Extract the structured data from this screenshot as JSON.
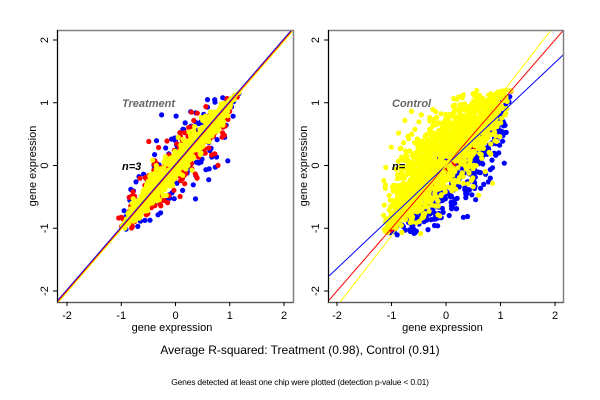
{
  "chart_data": [
    {
      "type": "scatter",
      "title": "Treatment",
      "annotation": "n=3",
      "xlabel": "gene expression",
      "ylabel": "gene expression",
      "xlim": [
        -2.2,
        2.15
      ],
      "ylim": [
        -2.15,
        2.15
      ],
      "xticks": [
        -2,
        -1,
        0,
        1,
        2
      ],
      "yticks": [
        -2,
        -1,
        0,
        1,
        2
      ],
      "grid": false,
      "series": [
        {
          "name": "blue points",
          "color": "#0000ff",
          "spread": 0.42,
          "n": 160
        },
        {
          "name": "red points",
          "color": "#ff0000",
          "spread": 0.26,
          "n": 260
        },
        {
          "name": "yellow points",
          "color": "#ffff00",
          "spread": 0.13,
          "n": 900
        }
      ],
      "point_range": [
        -1.1,
        1.2
      ],
      "fit_lines": [
        {
          "color": "#0000ff",
          "slope": 1.0,
          "intercept": 0.02
        },
        {
          "color": "#ff0000",
          "slope": 1.0,
          "intercept": 0.0
        },
        {
          "color": "#ffff00",
          "slope": 1.0,
          "intercept": -0.02
        }
      ]
    },
    {
      "type": "scatter",
      "title": "Control",
      "annotation": "n=",
      "xlabel": "gene expression",
      "ylabel": "gene expression",
      "xlim": [
        -2.2,
        2.15
      ],
      "ylim": [
        -2.15,
        2.15
      ],
      "xticks": [
        -2,
        -1,
        0,
        1,
        2
      ],
      "yticks": [
        -2,
        -1,
        0,
        1,
        2
      ],
      "grid": false,
      "series": [
        {
          "name": "blue points",
          "color": "#0000ff",
          "spread": 0.35,
          "n": 500,
          "shift": -0.35
        },
        {
          "name": "red points",
          "color": "#ff0000",
          "spread": 0.08,
          "n": 120,
          "shift": -0.1
        },
        {
          "name": "yellow points",
          "color": "#ffff00",
          "spread": 0.4,
          "n": 1400,
          "shift": 0.25
        }
      ],
      "point_range": [
        -1.1,
        1.2
      ],
      "fit_lines": [
        {
          "color": "#0000ff",
          "slope": 0.82,
          "intercept": 0.0
        },
        {
          "color": "#ff0000",
          "slope": 1.0,
          "intercept": 0.0
        },
        {
          "color": "#ffff00",
          "slope": 1.12,
          "intercept": 0.0
        }
      ]
    }
  ],
  "captions": {
    "main": "Average R-squared: Treatment (0.98), Control (0.91)",
    "sub": "Genes detected at least one chip were plotted (detection p-value < 0.01)"
  }
}
